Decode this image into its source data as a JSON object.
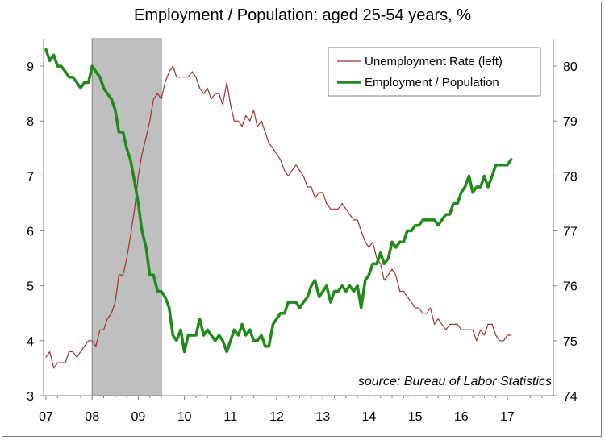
{
  "chart_data": {
    "type": "line",
    "title": "Employment / Population: aged 25-54 years, %",
    "source": "source: Bureau of Labor Statistics",
    "x_ticks": [
      "07",
      "08",
      "09",
      "10",
      "11",
      "12",
      "13",
      "14",
      "15",
      "16",
      "17"
    ],
    "left_axis": {
      "min": 3,
      "max": 9.5,
      "ticks": [
        3,
        4,
        5,
        6,
        7,
        8,
        9
      ]
    },
    "right_axis": {
      "min": 74,
      "max": 80.5,
      "ticks": [
        74,
        75,
        76,
        77,
        78,
        79,
        80
      ]
    },
    "recession": {
      "start": 2008.0,
      "end": 2009.5,
      "color": "#bfbfbf"
    },
    "legend": {
      "position": "top-right",
      "entries": [
        "Unemployment Rate (left)",
        "Employment / Population"
      ]
    },
    "series": [
      {
        "name": "Unemployment Rate (left)",
        "axis": "left",
        "color": "#a0322d",
        "x": [
          2007.0,
          2007.08,
          2007.17,
          2007.25,
          2007.33,
          2007.42,
          2007.5,
          2007.58,
          2007.67,
          2007.75,
          2007.83,
          2007.92,
          2008.0,
          2008.08,
          2008.17,
          2008.25,
          2008.33,
          2008.42,
          2008.5,
          2008.58,
          2008.67,
          2008.75,
          2008.83,
          2008.92,
          2009.0,
          2009.08,
          2009.17,
          2009.25,
          2009.33,
          2009.42,
          2009.5,
          2009.58,
          2009.67,
          2009.75,
          2009.83,
          2009.92,
          2010.0,
          2010.08,
          2010.17,
          2010.25,
          2010.33,
          2010.42,
          2010.5,
          2010.58,
          2010.67,
          2010.75,
          2010.83,
          2010.92,
          2011.0,
          2011.08,
          2011.17,
          2011.25,
          2011.33,
          2011.42,
          2011.5,
          2011.58,
          2011.67,
          2011.75,
          2011.83,
          2011.92,
          2012.0,
          2012.08,
          2012.17,
          2012.25,
          2012.33,
          2012.42,
          2012.5,
          2012.58,
          2012.67,
          2012.75,
          2012.83,
          2012.92,
          2013.0,
          2013.08,
          2013.17,
          2013.25,
          2013.33,
          2013.42,
          2013.5,
          2013.58,
          2013.67,
          2013.75,
          2013.83,
          2013.92,
          2014.0,
          2014.08,
          2014.17,
          2014.25,
          2014.33,
          2014.42,
          2014.5,
          2014.58,
          2014.67,
          2014.75,
          2014.83,
          2014.92,
          2015.0,
          2015.08,
          2015.17,
          2015.25,
          2015.33,
          2015.42,
          2015.5,
          2015.58,
          2015.67,
          2015.75,
          2015.83,
          2015.92,
          2016.0,
          2016.08,
          2016.17,
          2016.25,
          2016.33,
          2016.42,
          2016.5,
          2016.58,
          2016.67,
          2016.75,
          2016.83,
          2016.92,
          2017.0,
          2017.08
        ],
        "values": [
          3.7,
          3.8,
          3.5,
          3.6,
          3.6,
          3.6,
          3.8,
          3.8,
          3.7,
          3.8,
          3.9,
          4.0,
          4.0,
          3.9,
          4.2,
          4.2,
          4.4,
          4.5,
          4.7,
          5.2,
          5.2,
          5.5,
          5.9,
          6.4,
          7.0,
          7.4,
          7.7,
          8.0,
          8.4,
          8.5,
          8.4,
          8.7,
          8.9,
          9.0,
          8.8,
          8.8,
          8.8,
          8.8,
          8.9,
          8.8,
          8.6,
          8.5,
          8.6,
          8.4,
          8.5,
          8.5,
          8.3,
          8.7,
          8.3,
          8.0,
          8.0,
          7.9,
          8.1,
          8.0,
          8.2,
          7.9,
          8.0,
          7.8,
          7.6,
          7.5,
          7.4,
          7.3,
          7.1,
          7.0,
          7.1,
          7.2,
          7.1,
          7.0,
          6.8,
          6.8,
          6.6,
          6.7,
          6.7,
          6.5,
          6.4,
          6.4,
          6.4,
          6.5,
          6.4,
          6.3,
          6.2,
          6.2,
          6.0,
          5.8,
          5.7,
          5.8,
          5.5,
          5.4,
          5.1,
          5.2,
          5.3,
          5.2,
          4.9,
          4.9,
          4.8,
          4.7,
          4.6,
          4.6,
          4.5,
          4.5,
          4.6,
          4.3,
          4.4,
          4.3,
          4.2,
          4.3,
          4.3,
          4.3,
          4.2,
          4.2,
          4.2,
          4.2,
          4.0,
          4.2,
          4.1,
          4.3,
          4.3,
          4.1,
          4.0,
          4.0,
          4.1,
          4.1
        ]
      },
      {
        "name": "Employment / Population",
        "axis": "right",
        "color": "#1f8a1a",
        "x": [
          2007.0,
          2007.08,
          2007.17,
          2007.25,
          2007.33,
          2007.42,
          2007.5,
          2007.58,
          2007.67,
          2007.75,
          2007.83,
          2007.92,
          2008.0,
          2008.08,
          2008.17,
          2008.25,
          2008.33,
          2008.42,
          2008.5,
          2008.58,
          2008.67,
          2008.75,
          2008.83,
          2008.92,
          2009.0,
          2009.08,
          2009.17,
          2009.25,
          2009.33,
          2009.42,
          2009.5,
          2009.58,
          2009.67,
          2009.75,
          2009.83,
          2009.92,
          2010.0,
          2010.08,
          2010.17,
          2010.25,
          2010.33,
          2010.42,
          2010.5,
          2010.58,
          2010.67,
          2010.75,
          2010.83,
          2010.92,
          2011.0,
          2011.08,
          2011.17,
          2011.25,
          2011.33,
          2011.42,
          2011.5,
          2011.58,
          2011.67,
          2011.75,
          2011.83,
          2011.92,
          2012.0,
          2012.08,
          2012.17,
          2012.25,
          2012.33,
          2012.42,
          2012.5,
          2012.58,
          2012.67,
          2012.75,
          2012.83,
          2012.92,
          2013.0,
          2013.08,
          2013.17,
          2013.25,
          2013.33,
          2013.42,
          2013.5,
          2013.58,
          2013.67,
          2013.75,
          2013.83,
          2013.92,
          2014.0,
          2014.08,
          2014.17,
          2014.25,
          2014.33,
          2014.42,
          2014.5,
          2014.58,
          2014.67,
          2014.75,
          2014.83,
          2014.92,
          2015.0,
          2015.08,
          2015.17,
          2015.25,
          2015.33,
          2015.42,
          2015.5,
          2015.58,
          2015.67,
          2015.75,
          2015.83,
          2015.92,
          2016.0,
          2016.08,
          2016.17,
          2016.25,
          2016.33,
          2016.42,
          2016.5,
          2016.58,
          2016.67,
          2016.75,
          2016.83,
          2016.92,
          2017.0,
          2017.08
        ],
        "values": [
          80.3,
          80.1,
          80.2,
          80.0,
          80.0,
          79.9,
          79.8,
          79.8,
          79.7,
          79.6,
          79.7,
          79.7,
          80.0,
          79.9,
          79.8,
          79.6,
          79.5,
          79.4,
          79.2,
          78.8,
          78.8,
          78.5,
          78.3,
          77.9,
          77.5,
          77.0,
          76.7,
          76.2,
          76.2,
          75.9,
          75.9,
          75.8,
          75.6,
          75.1,
          75.0,
          75.2,
          74.8,
          75.1,
          75.1,
          75.1,
          75.4,
          75.1,
          75.2,
          75.1,
          75.0,
          75.1,
          75.0,
          74.8,
          75.0,
          75.2,
          75.1,
          75.3,
          75.1,
          75.2,
          75.0,
          75.0,
          75.1,
          74.9,
          74.9,
          75.3,
          75.4,
          75.5,
          75.5,
          75.7,
          75.7,
          75.7,
          75.6,
          75.7,
          75.8,
          76.0,
          76.1,
          75.8,
          75.9,
          76.0,
          75.7,
          75.9,
          75.9,
          76.0,
          75.9,
          76.0,
          75.9,
          76.0,
          75.6,
          76.1,
          76.2,
          76.4,
          76.4,
          76.6,
          76.4,
          76.5,
          76.8,
          76.7,
          76.8,
          76.8,
          77.0,
          77.0,
          77.1,
          77.1,
          77.2,
          77.2,
          77.2,
          77.2,
          77.1,
          77.2,
          77.3,
          77.3,
          77.5,
          77.5,
          77.7,
          77.8,
          78.0,
          77.7,
          77.8,
          77.8,
          78.0,
          77.8,
          78.0,
          78.2,
          78.2,
          78.2,
          78.2,
          78.3
        ]
      }
    ]
  }
}
